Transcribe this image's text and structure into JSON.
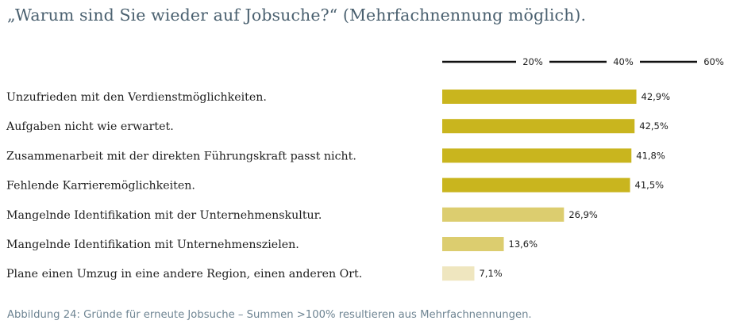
{
  "title": "„Warum sind Sie wieder auf Jobsuche?“ (Mehrfachnennung möglich).",
  "caption": "Abbildung 24: Gründe für erneute Jobsuche – Summen >100% resultieren aus Mehrfachnennungen.",
  "colors": {
    "title": "#4b6170",
    "caption": "#6f8593",
    "axis": "#111111",
    "bar_strong": "#c9b51e",
    "bar_medium": "#dccd6f",
    "bar_light": "#efe6bf"
  },
  "chart_data": {
    "type": "bar",
    "orientation": "horizontal",
    "categories": [
      "Unzufrieden mit den Verdienstmöglichkeiten.",
      "Aufgaben nicht wie erwartet.",
      "Zusammenarbeit mit der direkten Führungskraft passt nicht.",
      "Fehlende Karrieremöglichkeiten.",
      "Mangelnde Identifikation mit der Unternehmenskultur.",
      "Mangelnde Identifikation mit Unternehmenszielen.",
      "Plane einen Umzug in eine andere Region, einen anderen Ort."
    ],
    "values": [
      42.9,
      42.5,
      41.8,
      41.5,
      26.9,
      13.6,
      7.1
    ],
    "value_labels": [
      "42,9%",
      "42,5%",
      "41,8%",
      "41,5%",
      "26,9%",
      "13,6%",
      "7,1%"
    ],
    "bar_colors": [
      "#c9b51e",
      "#c9b51e",
      "#c9b51e",
      "#c9b51e",
      "#dccd6f",
      "#dccd6f",
      "#efe6bf"
    ],
    "xlim": [
      0,
      60
    ],
    "ticks": [
      20,
      40,
      60
    ],
    "tick_labels": [
      "20%",
      "40%",
      "60%"
    ],
    "axis_position": "top",
    "grid": false,
    "legend": "none"
  }
}
